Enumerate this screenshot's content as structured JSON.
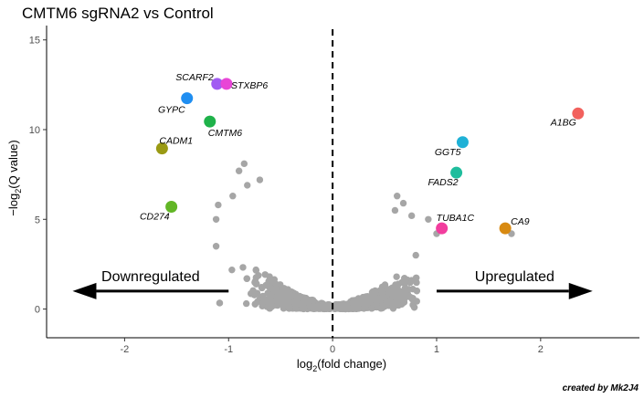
{
  "chart_data": {
    "type": "scatter",
    "title": "CMTM6 sgRNA2 vs Control",
    "xlabel_base": "log",
    "xlabel_sub": "2",
    "xlabel_rest": "(fold change)",
    "ylabel_prefix": "−log",
    "ylabel_sub": "2",
    "ylabel_rest": "(Q value)",
    "xlim": [
      -2.75,
      2.95
    ],
    "ylim": [
      -1.6,
      15.8
    ],
    "x_ticks": [
      -2,
      -1,
      0,
      1,
      2
    ],
    "y_ticks": [
      0,
      5,
      10,
      15
    ],
    "cutoff_line_x": 0,
    "highlighted_genes": [
      {
        "gene": "SCARF2",
        "x": -1.11,
        "y": 12.55,
        "color": "#a15bf2"
      },
      {
        "gene": "STXBP6",
        "x": -1.02,
        "y": 12.55,
        "color": "#e846d6"
      },
      {
        "gene": "GYPC",
        "x": -1.4,
        "y": 11.75,
        "color": "#1f8ef1"
      },
      {
        "gene": "CMTM6",
        "x": -1.18,
        "y": 10.45,
        "color": "#1fb24a"
      },
      {
        "gene": "CADM1",
        "x": -1.64,
        "y": 8.95,
        "color": "#9a9a14"
      },
      {
        "gene": "CD274",
        "x": -1.55,
        "y": 5.7,
        "color": "#62b626"
      },
      {
        "gene": "A1BG",
        "x": 2.36,
        "y": 10.9,
        "color": "#f2615d"
      },
      {
        "gene": "GGT5",
        "x": 1.25,
        "y": 9.3,
        "color": "#1fb1d6"
      },
      {
        "gene": "FADS2",
        "x": 1.19,
        "y": 7.6,
        "color": "#1fbd9d"
      },
      {
        "gene": "TUBA1C",
        "x": 1.05,
        "y": 4.5,
        "color": "#f23d9e"
      },
      {
        "gene": "CA9",
        "x": 1.66,
        "y": 4.5,
        "color": "#d88a12"
      }
    ],
    "background_series": {
      "name": "other genes",
      "color": "#a6a6a6",
      "count": 1900
    },
    "arrows": [
      {
        "label": "Downregulated",
        "direction": "left",
        "x_from": -1.0,
        "x_to": -2.5,
        "y": 1.0
      },
      {
        "label": "Upregulated",
        "direction": "right",
        "x_from": 1.0,
        "x_to": 2.5,
        "y": 1.0
      }
    ]
  },
  "watermark": {
    "text": "created by Mk2J4"
  }
}
